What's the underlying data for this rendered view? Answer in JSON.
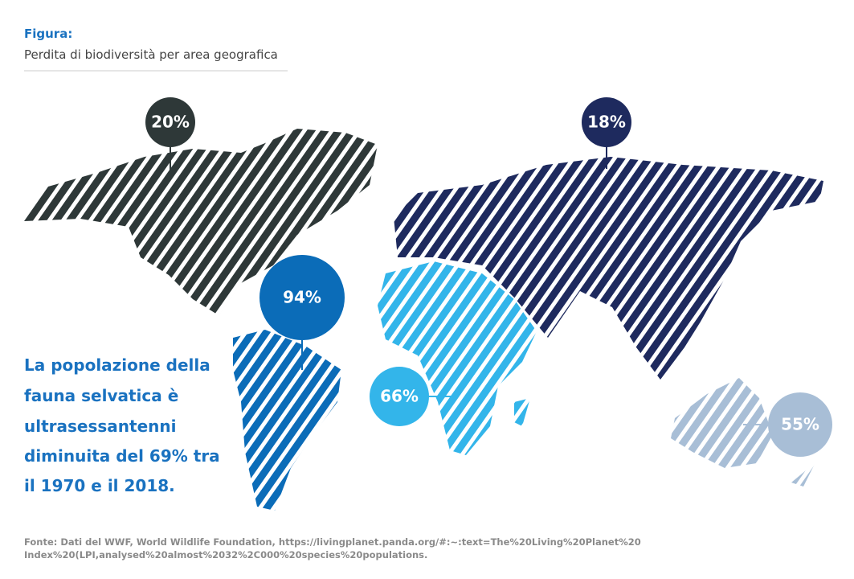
{
  "header": {
    "label": "Figura:",
    "title": "Perdita di biodiversità per area geografica"
  },
  "regions": [
    {
      "label": "20%",
      "color": "#2e3838"
    },
    {
      "label": "18%",
      "color": "#1e2a5e"
    },
    {
      "label": "94%",
      "color": "#0b6cb8"
    },
    {
      "label": "66%",
      "color": "#33b5ea"
    },
    {
      "label": "55%",
      "color": "#a8bed6"
    }
  ],
  "highlight": [
    "La popolazione della",
    "fauna selvatica è",
    "ultrasessantenni",
    "diminuita del 69% tra",
    "il 1970 e il 2018."
  ],
  "source": [
    "Fonte: Dati del WWF, World Wildlife Foundation, https://livingplanet.panda.org/#:~:text=The%20Living%20Planet%20",
    "Index%20(LPI,analysed%20almost%2032%2C000%20species%20populations."
  ]
}
